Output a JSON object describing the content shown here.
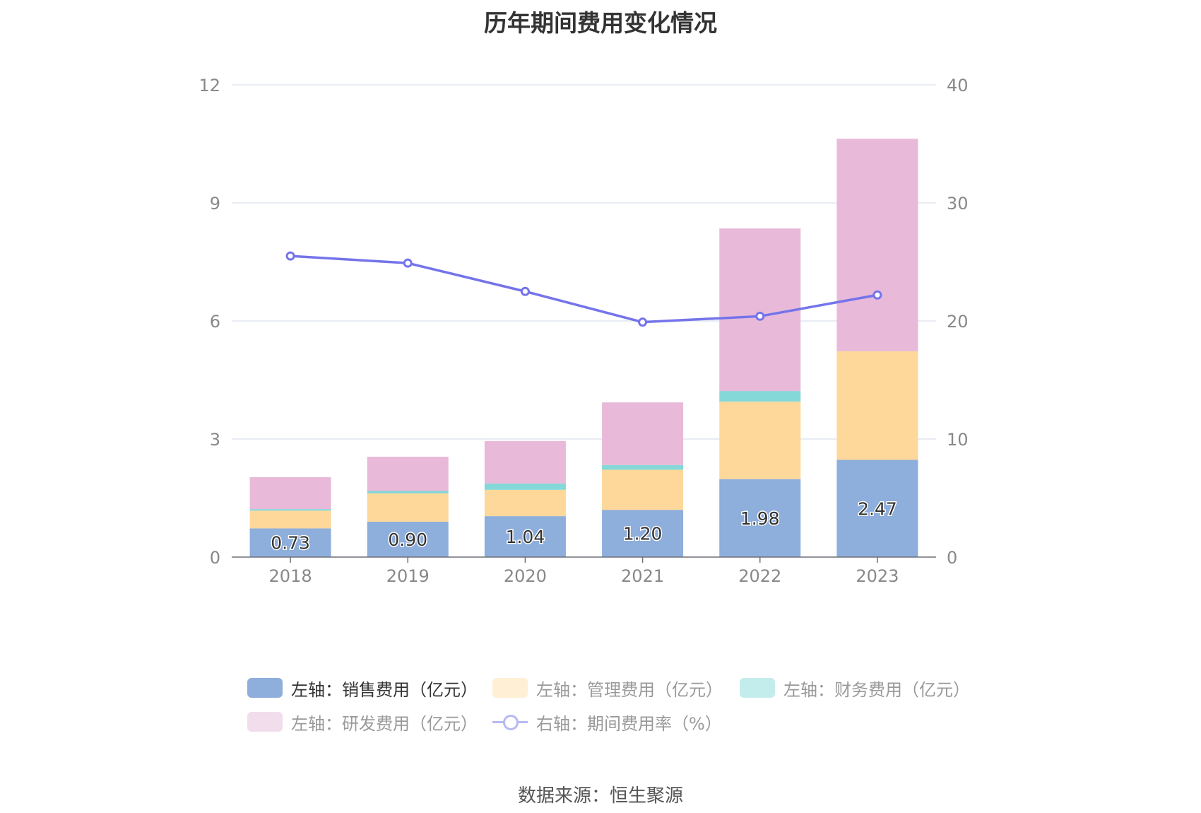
{
  "title": "历年期间费用变化情况",
  "source": "数据来源：恒生聚源",
  "colors": {
    "sales": "#8eaedb",
    "admin": "#fdd89a",
    "finance": "#84d8d8",
    "rnd": "#e8b9d9",
    "rate": "#7474ea",
    "grid": "#e0e6f1",
    "axis_text": "#888888"
  },
  "legend": [
    {
      "label": "左轴：销售费用（亿元）",
      "color": "#8eaedb",
      "kind": "bar"
    },
    {
      "label": "左轴：管理费用（亿元）",
      "color": "#ffefd4",
      "kind": "bar"
    },
    {
      "label": "左轴：财务费用（亿元）",
      "color": "#c3ecec",
      "kind": "bar"
    },
    {
      "label": "左轴：研发费用（亿元）",
      "color": "#f2dded",
      "kind": "bar"
    },
    {
      "label": "右轴：期间费用率（%）",
      "color": "#b7b9f2",
      "kind": "line"
    }
  ],
  "chart_data": {
    "type": "bar",
    "categories": [
      "2018",
      "2019",
      "2020",
      "2021",
      "2022",
      "2023"
    ],
    "stacked": true,
    "series": [
      {
        "name": "左轴：销售费用（亿元）",
        "axis": "left",
        "values": [
          0.73,
          0.9,
          1.04,
          1.2,
          1.98,
          2.47
        ],
        "labels": [
          "0.73",
          "0.90",
          "1.04",
          "1.20",
          "1.98",
          "2.47"
        ]
      },
      {
        "name": "左轴：管理费用（亿元）",
        "axis": "left",
        "values": [
          0.45,
          0.72,
          0.67,
          1.02,
          1.97,
          2.76
        ]
      },
      {
        "name": "左轴：财务费用（亿元）",
        "axis": "left",
        "values": [
          0.04,
          0.06,
          0.16,
          0.12,
          0.27,
          0.0
        ]
      },
      {
        "name": "左轴：研发费用（亿元）",
        "axis": "left",
        "values": [
          0.81,
          0.87,
          1.08,
          1.59,
          4.13,
          5.4
        ]
      },
      {
        "name": "右轴：期间费用率（%）",
        "axis": "right",
        "type": "line",
        "values": [
          25.5,
          24.9,
          22.5,
          19.9,
          20.4,
          22.2
        ]
      }
    ],
    "y_left": {
      "ylim": [
        0,
        12
      ],
      "ticks": [
        "0",
        "3",
        "6",
        "9",
        "12"
      ]
    },
    "y_right": {
      "ylim": [
        0,
        40
      ],
      "ticks": [
        "0",
        "10",
        "20",
        "30",
        "40"
      ]
    },
    "grid": true,
    "legend_position": "bottom"
  }
}
